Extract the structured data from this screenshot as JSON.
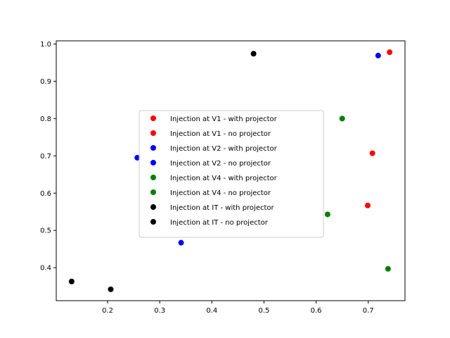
{
  "chart_data": {
    "type": "scatter",
    "title": "",
    "xlabel": "",
    "ylabel": "",
    "xlim": [
      0.1015,
      0.7705
    ],
    "ylim": [
      0.3115,
      1.0085
    ],
    "x_ticks": [
      0.2,
      0.3,
      0.4,
      0.5,
      0.6,
      0.7
    ],
    "y_ticks": [
      0.4,
      0.5,
      0.6,
      0.7,
      0.8,
      0.9,
      1.0
    ],
    "x_tick_labels": [
      "0.2",
      "0.3",
      "0.4",
      "0.5",
      "0.6",
      "0.7"
    ],
    "y_tick_labels": [
      "0.4",
      "0.5",
      "0.6",
      "0.7",
      "0.8",
      "0.9",
      "1.0"
    ],
    "grid": false,
    "legend_position": "center",
    "series": [
      {
        "name": "Injection at V1 - with projector",
        "color": "#ff0000",
        "points": [
          [
            0.741,
            0.978
          ]
        ]
      },
      {
        "name": "Injection at V1 - no projector",
        "color": "#ff0000",
        "points": [
          [
            0.708,
            0.707
          ],
          [
            0.699,
            0.567
          ]
        ]
      },
      {
        "name": "Injection at V2 - with projector",
        "color": "#0000ff",
        "points": [
          [
            0.719,
            0.969
          ]
        ]
      },
      {
        "name": "Injection at V2 - no projector",
        "color": "#0000ff",
        "points": [
          [
            0.257,
            0.695
          ],
          [
            0.341,
            0.467
          ]
        ]
      },
      {
        "name": "Injection at V4 - with projector",
        "color": "#008000",
        "points": [
          [
            0.65,
            0.8
          ]
        ]
      },
      {
        "name": "Injection at V4 - no projector",
        "color": "#008000",
        "points": [
          [
            0.622,
            0.543
          ],
          [
            0.738,
            0.397
          ]
        ]
      },
      {
        "name": "Injection at IT - with projector",
        "color": "#000000",
        "points": [
          [
            0.48,
            0.974
          ]
        ]
      },
      {
        "name": "Injection at IT - no projector",
        "color": "#000000",
        "points": [
          [
            0.131,
            0.363
          ],
          [
            0.206,
            0.342
          ]
        ]
      }
    ]
  }
}
